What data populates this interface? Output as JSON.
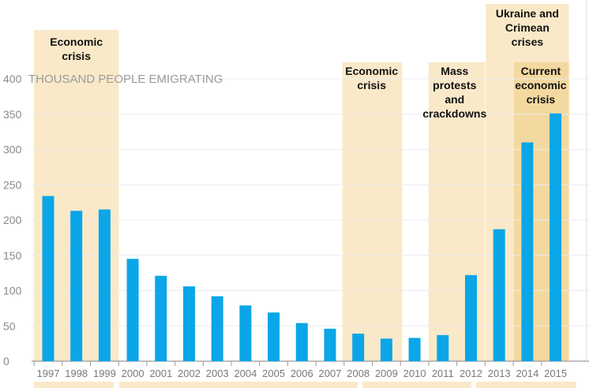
{
  "chart_data": {
    "type": "bar",
    "categories": [
      "1997",
      "1998",
      "1999",
      "2000",
      "2001",
      "2002",
      "2003",
      "2004",
      "2005",
      "2006",
      "2007",
      "2008",
      "2009",
      "2010",
      "2011",
      "2012",
      "2013",
      "2014",
      "2015"
    ],
    "values": [
      234,
      213,
      215,
      145,
      121,
      106,
      92,
      79,
      69,
      54,
      46,
      39,
      32,
      33,
      37,
      122,
      187,
      310,
      351
    ],
    "ylim": [
      0,
      400
    ],
    "yticks": [
      0,
      50,
      100,
      150,
      200,
      250,
      300,
      350,
      400
    ],
    "unit_label": "THOUSAND PEOPLE EMIGRATING",
    "grid": true,
    "colors": {
      "bar": "#0aa6e8",
      "band": "#fae9c8",
      "band_dark": "#f3d99f",
      "grid": "#ececec",
      "axis": "#9a9a9a"
    },
    "annotations": [
      {
        "label_lines": [
          "Economic",
          "crisis"
        ],
        "from": "1997",
        "to": "1999"
      },
      {
        "label_lines": [
          "Economic",
          "crisis"
        ],
        "from": "2008",
        "to": "2009"
      },
      {
        "label_lines": [
          "Mass",
          "protests",
          "and",
          "crackdowns"
        ],
        "from": "2011",
        "to": "2012"
      },
      {
        "label_lines": [
          "Ukraine and",
          "Crimean",
          "crises"
        ],
        "from": "2013",
        "to": "2015"
      },
      {
        "label_lines": [
          "Current",
          "economic",
          "crisis"
        ],
        "from": "2014",
        "to": "2015"
      }
    ]
  }
}
